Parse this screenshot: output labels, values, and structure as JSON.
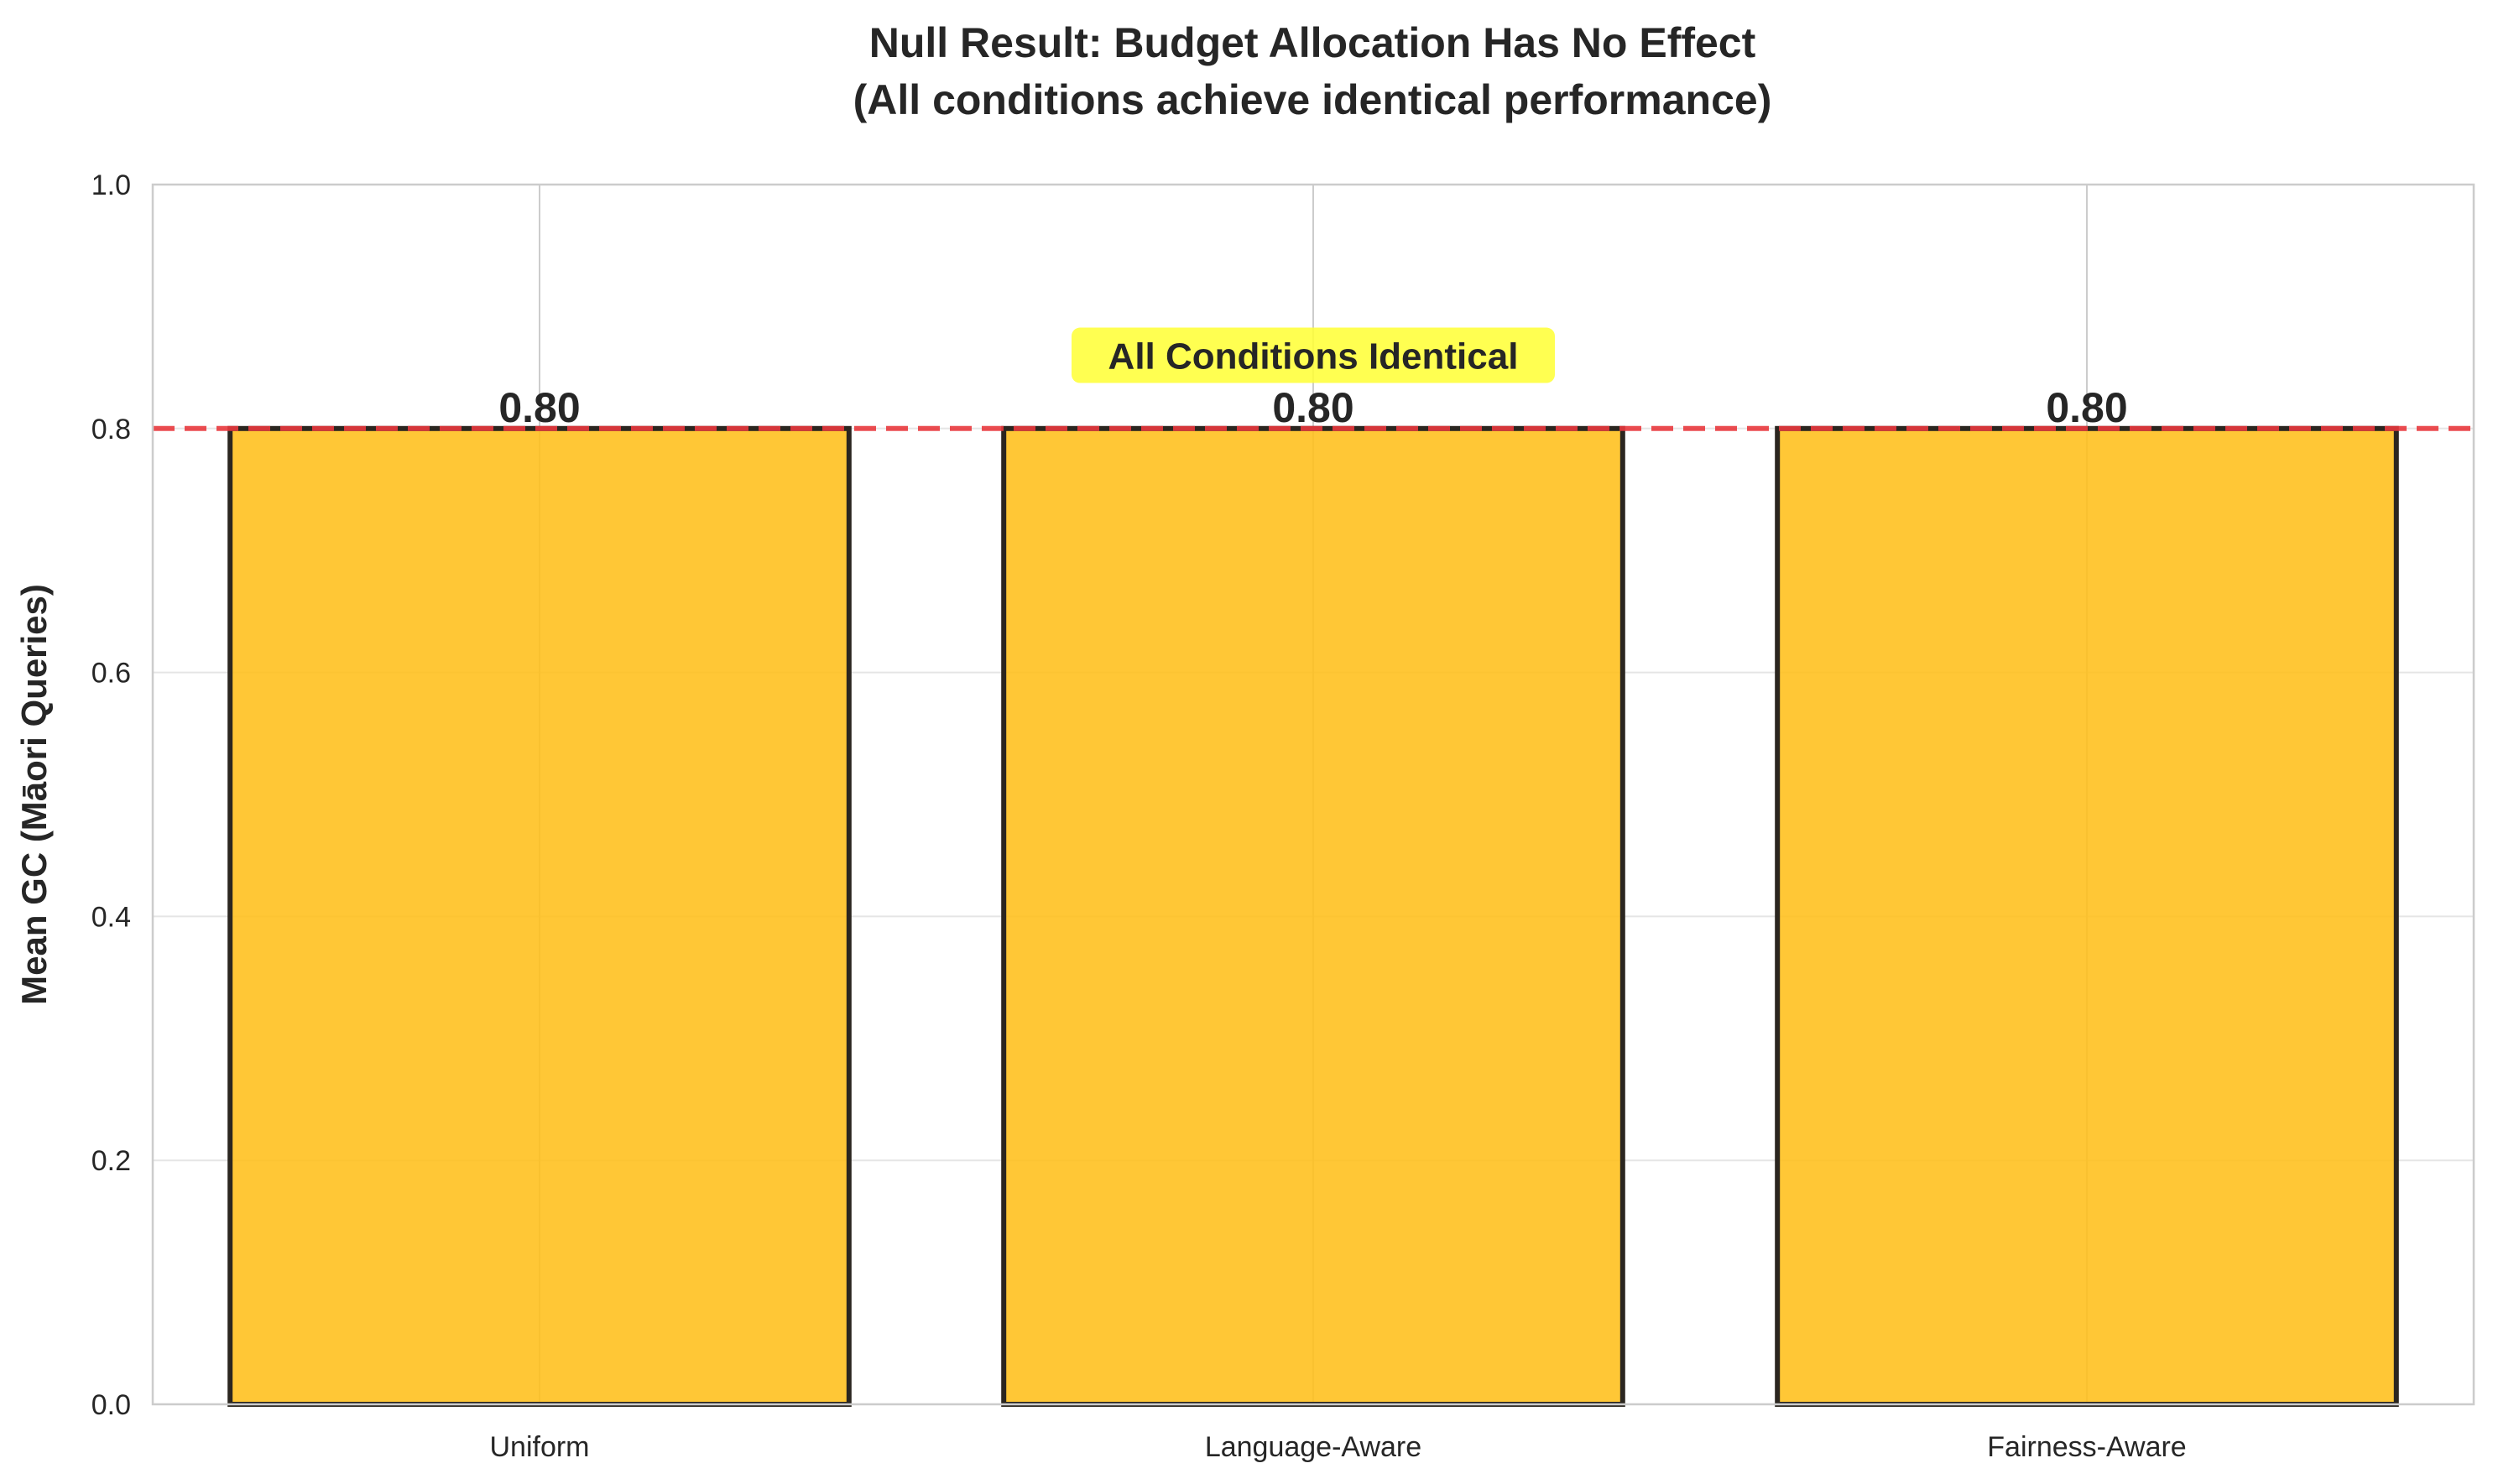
{
  "chart_data": {
    "type": "bar",
    "title": [
      "Null Result: Budget Allocation Has No Effect",
      "(All conditions achieve identical performance)"
    ],
    "xlabel": "",
    "ylabel": "Mean GC (Māori Queries)",
    "categories": [
      "Uniform",
      "Language-Aware",
      "Fairness-Aware"
    ],
    "values": [
      0.8,
      0.8,
      0.8
    ],
    "value_labels": [
      "0.80",
      "0.80",
      "0.80"
    ],
    "ylim": [
      0,
      1.0
    ],
    "yticks": [
      0.0,
      0.2,
      0.4,
      0.6,
      0.8,
      1.0
    ],
    "ytick_labels": [
      "0.0",
      "0.2",
      "0.4",
      "0.6",
      "0.8",
      "1.0"
    ],
    "grid": true,
    "reference_line": {
      "y": 0.8,
      "style": "dashed",
      "color": "#e8383d"
    },
    "annotation": {
      "text": "All Conditions Identical",
      "y": 0.86,
      "background": "#ffff33"
    },
    "colors": {
      "bar_fill": "#ffbf1a",
      "bar_edge": "#2b2620",
      "grid": "#e5e5e5",
      "spine": "#cccccc"
    }
  }
}
